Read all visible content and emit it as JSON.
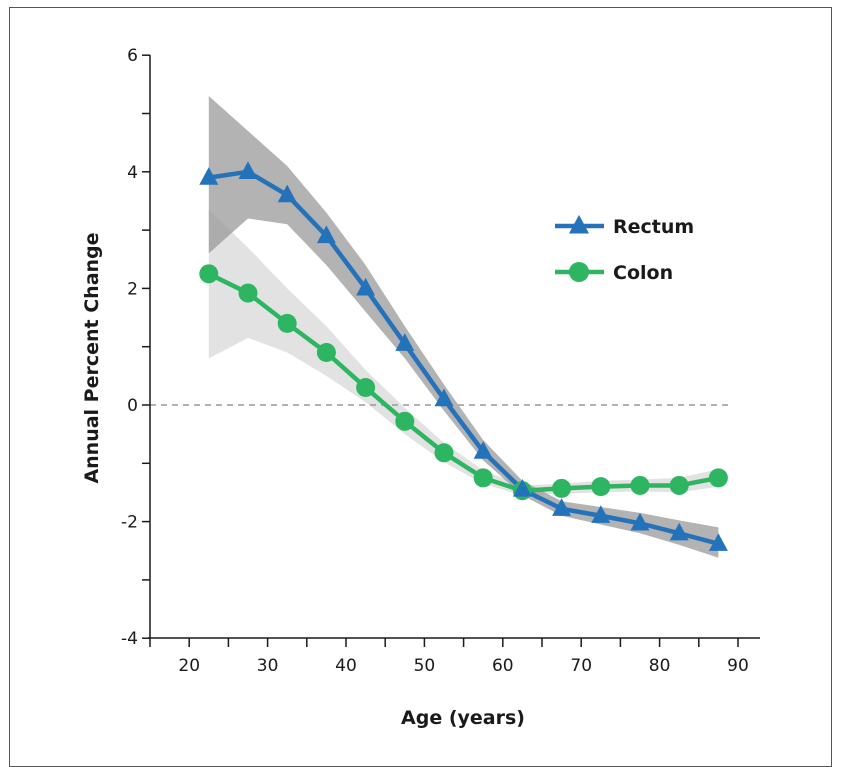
{
  "chart_data": {
    "type": "line",
    "xlabel": "Age (years)",
    "ylabel": "Annual Percent Change",
    "xlim": [
      15,
      93
    ],
    "ylim": [
      -4,
      6
    ],
    "xticks": [
      20,
      30,
      40,
      50,
      60,
      70,
      80,
      90
    ],
    "yticks": [
      -4,
      -2,
      0,
      2,
      4,
      6
    ],
    "ytick_labels": [
      "-4",
      "-2",
      "0",
      "2",
      "4",
      "6"
    ],
    "reference_line": 0,
    "legend_position": "right-center",
    "series": [
      {
        "name": "Rectum",
        "color": "#2472b9",
        "marker": "triangle",
        "band_color": "#9a9a9a",
        "x": [
          22.5,
          27.5,
          32.5,
          37.5,
          42.5,
          47.5,
          52.5,
          57.5,
          62.5,
          67.5,
          72.5,
          77.5,
          82.5,
          87.5
        ],
        "values": [
          3.9,
          4.0,
          3.6,
          2.9,
          2.0,
          1.05,
          0.1,
          -0.8,
          -1.45,
          -1.78,
          -1.9,
          -2.03,
          -2.2,
          -2.38
        ],
        "lower": [
          2.6,
          3.2,
          3.1,
          2.4,
          1.6,
          0.8,
          -0.1,
          -0.95,
          -1.55,
          -1.9,
          -2.05,
          -2.2,
          -2.4,
          -2.62
        ],
        "upper": [
          5.3,
          4.7,
          4.1,
          3.3,
          2.4,
          1.35,
          0.35,
          -0.6,
          -1.3,
          -1.65,
          -1.75,
          -1.85,
          -1.98,
          -2.1
        ]
      },
      {
        "name": "Colon",
        "color": "#2db562",
        "marker": "circle",
        "band_color": "#d6d6d6",
        "x": [
          22.5,
          27.5,
          32.5,
          37.5,
          42.5,
          47.5,
          52.5,
          57.5,
          62.5,
          67.5,
          72.5,
          77.5,
          82.5,
          87.5
        ],
        "values": [
          2.25,
          1.92,
          1.4,
          0.9,
          0.3,
          -0.28,
          -0.82,
          -1.25,
          -1.47,
          -1.43,
          -1.4,
          -1.38,
          -1.38,
          -1.25
        ],
        "lower": [
          0.8,
          1.15,
          0.9,
          0.5,
          0.05,
          -0.5,
          -0.98,
          -1.35,
          -1.55,
          -1.52,
          -1.5,
          -1.48,
          -1.5,
          -1.4
        ],
        "upper": [
          3.35,
          2.7,
          2.0,
          1.35,
          0.6,
          -0.05,
          -0.65,
          -1.12,
          -1.38,
          -1.35,
          -1.3,
          -1.28,
          -1.25,
          -1.1
        ]
      }
    ]
  }
}
